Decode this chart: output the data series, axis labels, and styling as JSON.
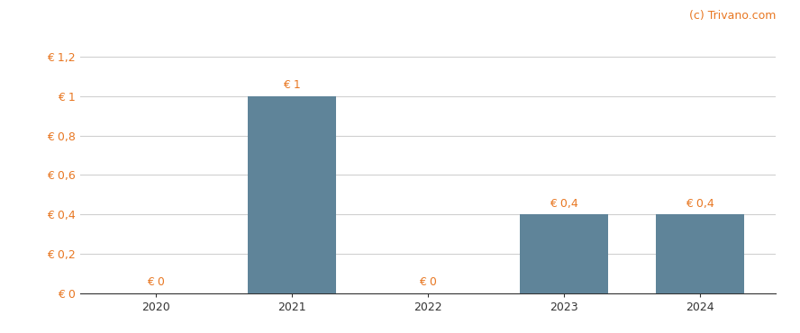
{
  "categories": [
    2020,
    2021,
    2022,
    2023,
    2024
  ],
  "values": [
    0,
    1.0,
    0,
    0.4,
    0.4
  ],
  "bar_color": "#5f8499",
  "bar_labels": [
    "€ 0",
    "€ 1",
    "€ 0",
    "€ 0,4",
    "€ 0,4"
  ],
  "ytick_labels": [
    "€ 0",
    "€ 0,2",
    "€ 0,4",
    "€ 0,6",
    "€ 0,8",
    "€ 1",
    "€ 1,2"
  ],
  "ytick_values": [
    0,
    0.2,
    0.4,
    0.6,
    0.8,
    1.0,
    1.2
  ],
  "ylim": [
    0,
    1.32
  ],
  "watermark": "(c) Trivano.com",
  "label_color": "#e87722",
  "tick_color": "#e87722",
  "xtick_color": "#333333",
  "watermark_color": "#e87722",
  "background_color": "#ffffff",
  "grid_color": "#d0d0d0",
  "bar_width": 0.65,
  "label_fontsize": 9,
  "tick_fontsize": 9,
  "watermark_fontsize": 9
}
